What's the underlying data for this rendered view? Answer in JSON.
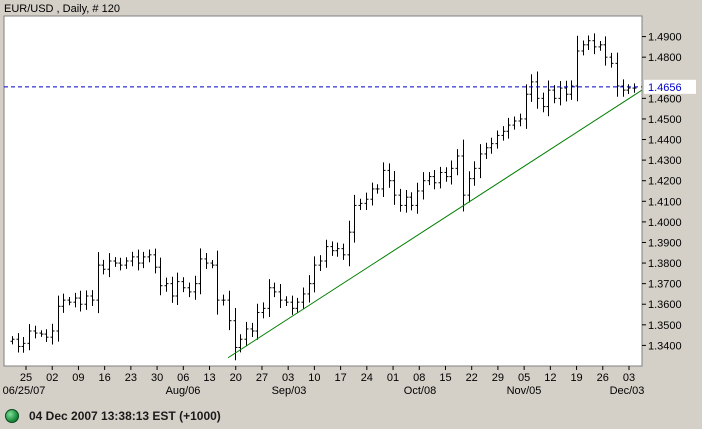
{
  "chart_data": {
    "type": "ohlc",
    "title": "EUR/USD , Daily, # 120",
    "ylim": [
      1.33,
      1.5
    ],
    "y_ticks": [
      "1.3400",
      "1.3500",
      "1.3600",
      "1.3700",
      "1.3800",
      "1.3900",
      "1.4000",
      "1.4100",
      "1.4200",
      "1.4300",
      "1.4400",
      "1.4500",
      "1.4600",
      "1.4800",
      "1.4900"
    ],
    "day_ticks": [
      "25",
      "02",
      "09",
      "16",
      "23",
      "30",
      "06",
      "13",
      "20",
      "27",
      "03",
      "10",
      "17",
      "24",
      "01",
      "08",
      "15",
      "22",
      "29",
      "05",
      "12",
      "19",
      "26",
      "03"
    ],
    "month_ticks": [
      "06/25/07",
      "Aug/06",
      "Sep/03",
      "Oct/08",
      "Nov/05",
      "Dec/03"
    ],
    "horizontal_line": {
      "value": 1.4656,
      "label": "1.4656",
      "color": "#0000cc"
    },
    "trendline": {
      "from": [
        1.334
      ],
      "to": [
        1.464
      ],
      "color": "#008000"
    },
    "bar_color": "#000000",
    "closes": [
      1.343,
      1.3395,
      1.341,
      1.347,
      1.346,
      1.3455,
      1.344,
      1.347,
      1.359,
      1.362,
      1.361,
      1.363,
      1.36,
      1.364,
      1.362,
      1.379,
      1.377,
      1.381,
      1.38,
      1.379,
      1.381,
      1.383,
      1.38,
      1.383,
      1.384,
      1.378,
      1.369,
      1.37,
      1.364,
      1.371,
      1.368,
      1.366,
      1.37,
      1.382,
      1.38,
      1.379,
      1.362,
      1.362,
      1.352,
      1.339,
      1.343,
      1.348,
      1.347,
      1.356,
      1.358,
      1.368,
      1.366,
      1.362,
      1.361,
      1.358,
      1.361,
      1.365,
      1.37,
      1.379,
      1.381,
      1.388,
      1.386,
      1.387,
      1.384,
      1.395,
      1.408,
      1.409,
      1.411,
      1.416,
      1.416,
      1.425,
      1.42,
      1.413,
      1.408,
      1.412,
      1.408,
      1.415,
      1.42,
      1.422,
      1.419,
      1.424,
      1.422,
      1.426,
      1.432,
      1.413,
      1.421,
      1.426,
      1.433,
      1.436,
      1.438,
      1.442,
      1.444,
      1.447,
      1.449,
      1.45,
      1.462,
      1.468,
      1.46,
      1.456,
      1.464,
      1.46,
      1.465,
      1.462,
      1.466,
      1.483,
      1.486,
      1.488,
      1.485,
      1.486,
      1.48,
      1.477,
      1.466,
      1.464,
      1.465,
      1.465
    ]
  },
  "status": {
    "datetime": "04 Dec 2007 13:38:13 EST (+1000)"
  }
}
